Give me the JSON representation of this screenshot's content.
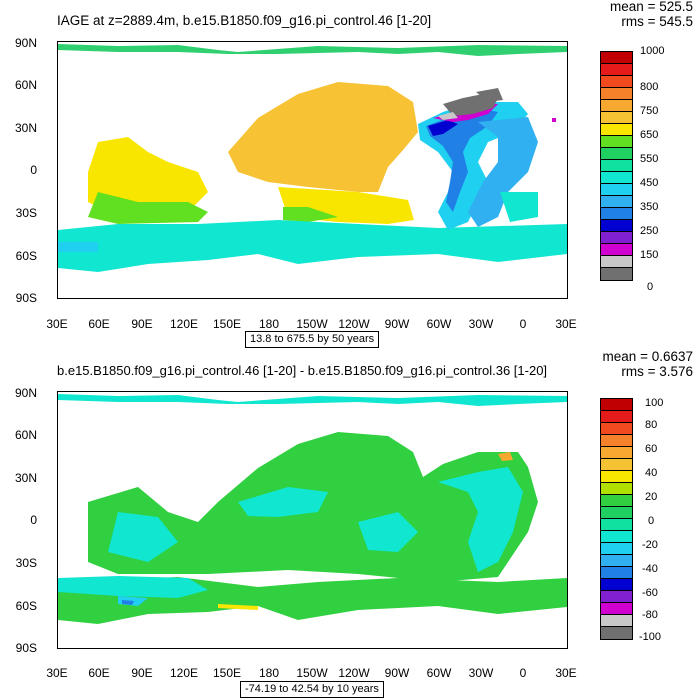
{
  "panel1": {
    "title": "IAGE at z=2889.4m, b.e15.B1850.f09_g16.pi_control.46 [1-20]",
    "mean_label": "mean = 525.5",
    "rms_label": "rms = 545.5",
    "range_label": "13.8 to 675.5 by 50 years",
    "colorbar_labels": [
      "1000",
      "800",
      "750",
      "650",
      "550",
      "450",
      "350",
      "250",
      "150",
      "0"
    ]
  },
  "panel2": {
    "title": "b.e15.B1850.f09_g16.pi_control.46 [1-20] - b.e15.B1850.f09_g16.pi_control.36 [1-20]",
    "mean_label": "mean = 0.6637",
    "rms_label": "rms = 3.576",
    "range_label": "-74.19 to 42.54 by 10 years",
    "colorbar_labels": [
      "100",
      "80",
      "60",
      "40",
      "20",
      "0",
      "-20",
      "-40",
      "-60",
      "-80",
      "-100"
    ]
  },
  "axes": {
    "lat_labels": [
      "90N",
      "60N",
      "30N",
      "0",
      "30S",
      "60S",
      "90S"
    ],
    "lon_labels": [
      "30E",
      "60E",
      "90E",
      "120E",
      "150E",
      "180",
      "150W",
      "120W",
      "90W",
      "60W",
      "30W",
      "0",
      "30E"
    ]
  },
  "colors": {
    "colorbar1": [
      "#c00000",
      "#e51a1a",
      "#f04a1e",
      "#f5822a",
      "#f7a830",
      "#f5c233",
      "#f9e600",
      "#60e020",
      "#20d060",
      "#10e0a0",
      "#10e6d0",
      "#20d0f0",
      "#30b0f0",
      "#2080e6",
      "#0000d0",
      "#8020d0",
      "#d000d0",
      "#c8c8c8",
      "#707070"
    ],
    "colorbar2": [
      "#c00000",
      "#e51a1a",
      "#f04a1e",
      "#f5822a",
      "#f7a830",
      "#f5c233",
      "#f9e600",
      "#b0e000",
      "#30d040",
      "#20d060",
      "#10e0a0",
      "#10e6d0",
      "#20d0f0",
      "#30b0f0",
      "#2080e6",
      "#0000d0",
      "#8020d0",
      "#d000d0",
      "#c8c8c8",
      "#707070"
    ],
    "pacific_age": "#f7c233",
    "southern_age": "#10e6d0",
    "diff_main": "#30d040"
  }
}
